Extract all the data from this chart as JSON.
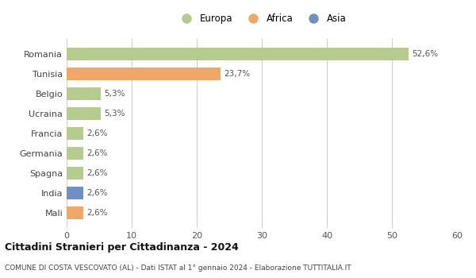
{
  "countries": [
    "Romania",
    "Tunisia",
    "Belgio",
    "Ucraina",
    "Francia",
    "Germania",
    "Spagna",
    "India",
    "Mali"
  ],
  "values": [
    52.6,
    23.7,
    5.3,
    5.3,
    2.6,
    2.6,
    2.6,
    2.6,
    2.6
  ],
  "labels": [
    "52,6%",
    "23,7%",
    "5,3%",
    "5,3%",
    "2,6%",
    "2,6%",
    "2,6%",
    "2,6%",
    "2,6%"
  ],
  "colors": [
    "#b5cc8e",
    "#f0a868",
    "#b5cc8e",
    "#b5cc8e",
    "#b5cc8e",
    "#b5cc8e",
    "#b5cc8e",
    "#7090c0",
    "#f0a868"
  ],
  "legend_labels": [
    "Europa",
    "Africa",
    "Asia"
  ],
  "legend_colors": [
    "#b5cc8e",
    "#f0a868",
    "#7090c0"
  ],
  "title": "Cittadini Stranieri per Cittadinanza - 2024",
  "subtitle": "COMUNE DI COSTA VESCOVATO (AL) - Dati ISTAT al 1° gennaio 2024 - Elaborazione TUTTITALIA.IT",
  "xlim": [
    0,
    60
  ],
  "xticks": [
    0,
    10,
    20,
    30,
    40,
    50,
    60
  ],
  "background_color": "#ffffff",
  "grid_color": "#cccccc"
}
